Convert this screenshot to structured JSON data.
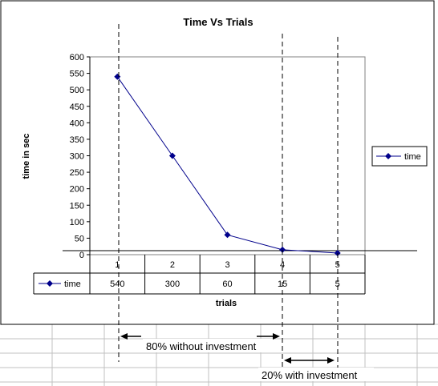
{
  "chart_data": {
    "type": "line",
    "title": "Time Vs Trials",
    "xlabel": "trials",
    "ylabel": "time in sec",
    "categories": [
      "1",
      "2",
      "3",
      "4",
      "5"
    ],
    "series": [
      {
        "name": "time",
        "values": [
          540,
          300,
          60,
          15,
          5
        ],
        "color": "#00008b"
      }
    ],
    "ylim": [
      0,
      600
    ],
    "yticks": [
      "0",
      "50",
      "100",
      "150",
      "200",
      "250",
      "300",
      "350",
      "400",
      "450",
      "500",
      "550",
      "600"
    ],
    "grid": false,
    "legend": "right",
    "data_table": true,
    "annotations": {
      "without_investment": "80% without investment",
      "with_investment": "20% with investment"
    }
  }
}
